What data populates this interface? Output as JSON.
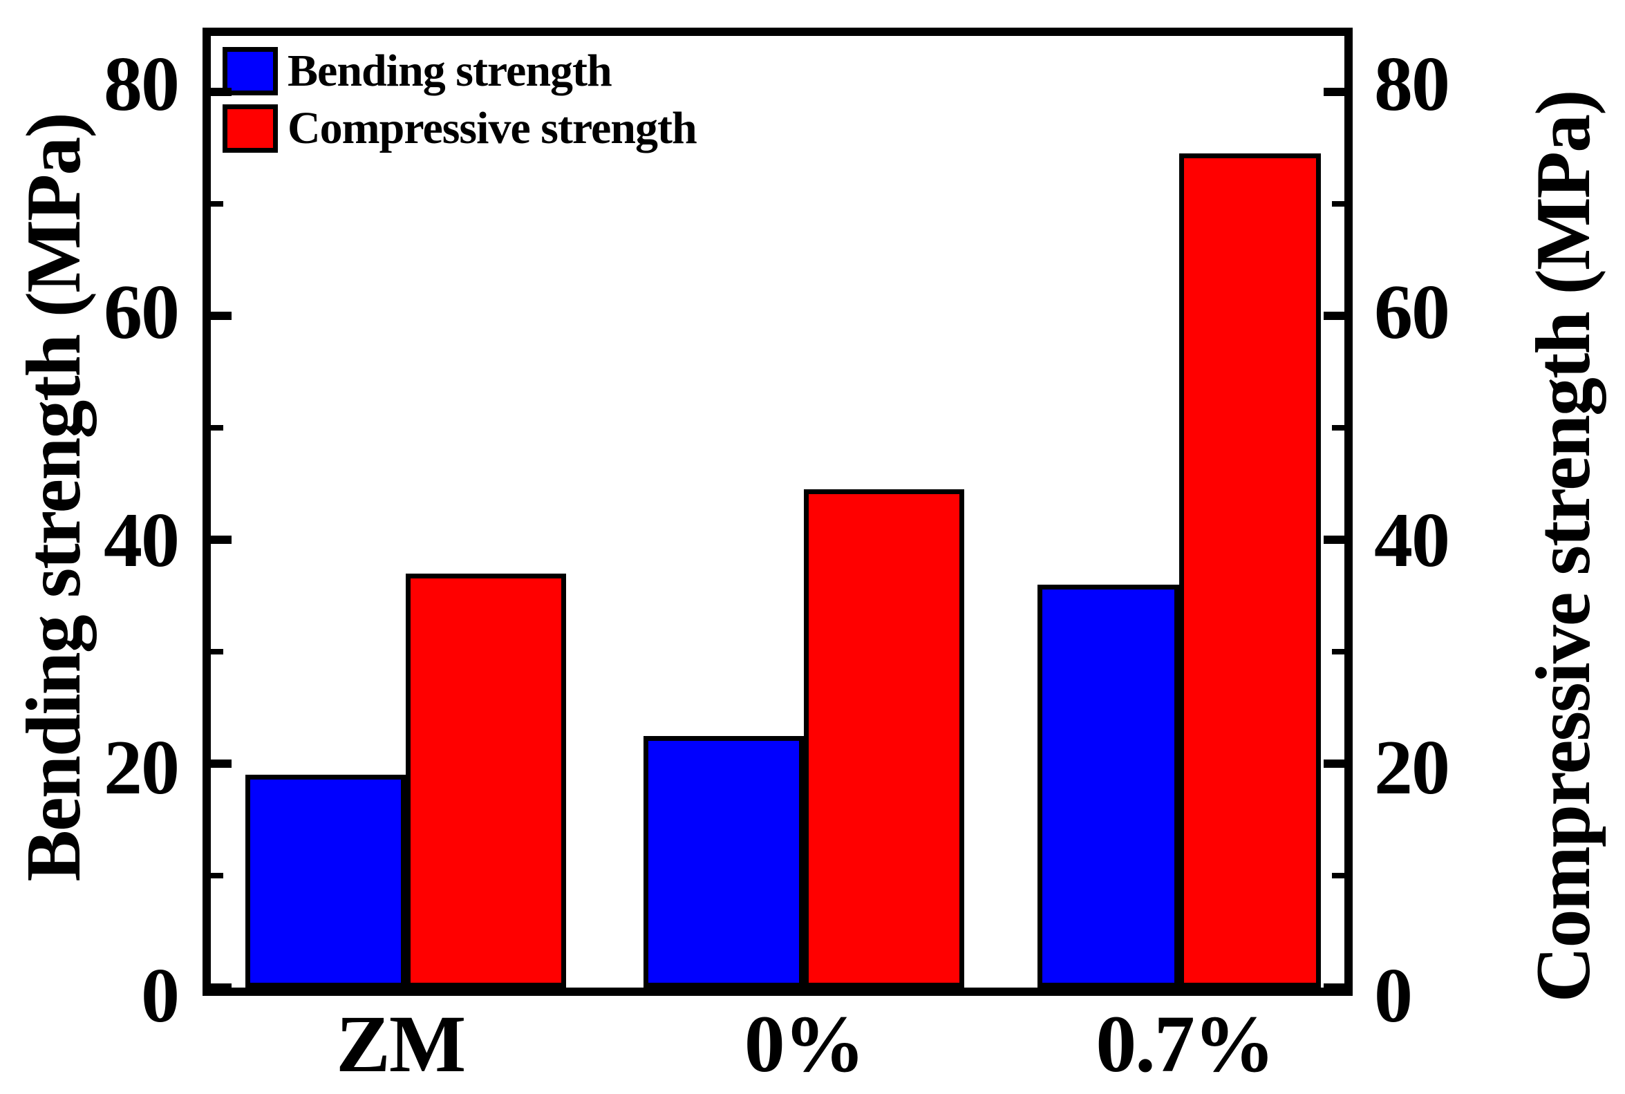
{
  "chart_data": {
    "type": "bar",
    "categories": [
      "ZM",
      "0%",
      "0.7%"
    ],
    "series": [
      {
        "name": "Bending strength",
        "color": "#0000ff",
        "axis": "left",
        "values": [
          19,
          22.5,
          36
        ]
      },
      {
        "name": "Compressive strength",
        "color": "#ff0000",
        "axis": "right",
        "values": [
          37,
          44.5,
          74.5
        ]
      }
    ],
    "title": "",
    "xlabel": "",
    "ylabel_left": "Bending strength (MPa)",
    "ylabel_right": "Compressive strength (MPa)",
    "ylim": [
      0,
      85
    ],
    "yticks_major": [
      0,
      20,
      40,
      60,
      80
    ],
    "yticks_minor": [
      10,
      30,
      50,
      70
    ],
    "grid": false,
    "legend_position": "top-left-inside",
    "frame_color": "#000000",
    "bar_edge_color": "#000000",
    "background_color": "#ffffff"
  }
}
